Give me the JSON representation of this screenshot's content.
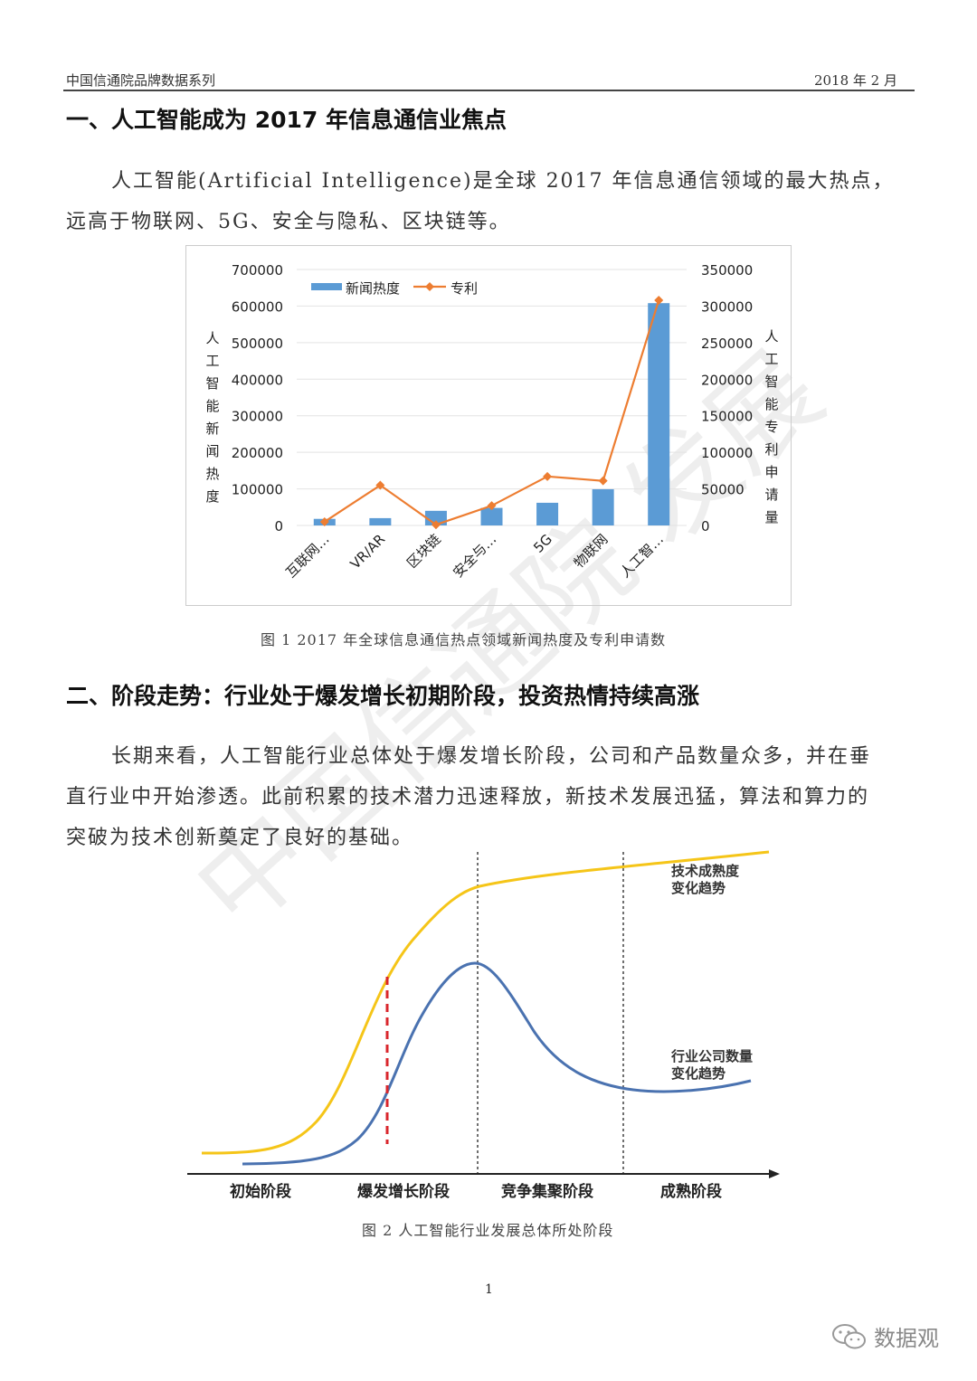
{
  "header": {
    "left": "中国信通院品牌数据系列",
    "right": "2018 年 2 月"
  },
  "section1": {
    "title": "一、人工智能成为 2017 年信息通信业焦点",
    "para": [
      "人工智能(Artificial Intelligence)是全球 2017 年信息通信领域的最大热点，",
      "远高于物联网、5G、安全与隐私、区块链等。"
    ]
  },
  "chart_data": {
    "type": "bar+line",
    "categories": [
      "互联网…",
      "VR/AR",
      "区块链",
      "安全与…",
      "5G",
      "物联网",
      "人工智…"
    ],
    "series": [
      {
        "name": "新闻热度",
        "type": "bar",
        "axis": "left",
        "color": "#5b9bd5",
        "values": [
          18000,
          20000,
          40000,
          48000,
          62000,
          99000,
          608000
        ]
      },
      {
        "name": "专利",
        "type": "line",
        "axis": "right",
        "color": "#ed7d31",
        "values": [
          5000,
          55000,
          1000,
          27000,
          67000,
          61000,
          308000
        ]
      }
    ],
    "ylabel_left": "人工智能新闻热度",
    "ylabel_right": "人工智能专利申请量",
    "ylim_left": [
      0,
      700000
    ],
    "ylim_right": [
      0,
      350000
    ],
    "yticks_left": [
      "0",
      "100000",
      "200000",
      "300000",
      "400000",
      "500000",
      "600000",
      "700000"
    ],
    "yticks_right": [
      "0",
      "50000",
      "100000",
      "150000",
      "200000",
      "250000",
      "300000",
      "350000"
    ],
    "grid": true,
    "legend": "top-left"
  },
  "figure1_caption": "图 1 2017 年全球信息通信热点领域新闻热度及专利申请数",
  "section2": {
    "title": "二、阶段走势：行业处于爆发增长初期阶段，投资热情持续高涨",
    "para": [
      "长期来看，人工智能行业总体处于爆发增长阶段，公司和产品数量众多，并在垂",
      "直行业中开始渗透。此前积累的技术潜力迅速释放，新技术发展迅猛，算法和算力的",
      "突破为技术创新奠定了良好的基础。"
    ]
  },
  "diagram": {
    "curve_labels": [
      [
        "技术成熟度",
        "变化趋势"
      ],
      [
        "行业公司数量",
        "变化趋势"
      ]
    ],
    "stages": [
      "初始阶段",
      "爆发增长阶段",
      "竞争集聚阶段",
      "成熟阶段"
    ],
    "colors": {
      "tech": "#f5c518",
      "companies": "#4a72b0",
      "marker": "#d9262c"
    }
  },
  "figure2_caption": "图 2 人工智能行业发展总体所处阶段",
  "page_number": "1",
  "watermark": "中国信通院 发展",
  "logo": {
    "text": "数据观",
    "icon": "wechat-icon"
  }
}
